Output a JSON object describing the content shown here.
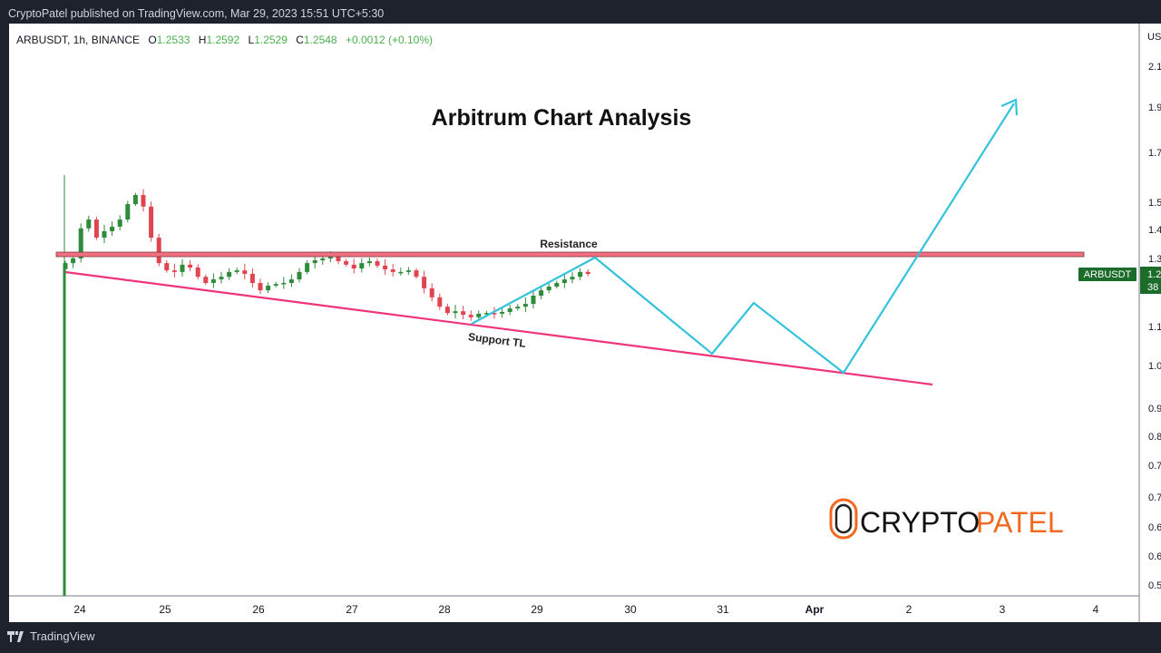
{
  "publisher_line": "CryptoPatel published on TradingView.com, Mar 29, 2023 15:51 UTC+5:30",
  "legend": {
    "symbol": "ARBUSDT, 1h, BINANCE",
    "open_label": "O",
    "open": "1.2533",
    "high_label": "H",
    "high": "1.2592",
    "low_label": "L",
    "low": "1.2529",
    "close_label": "C",
    "close": "1.2548",
    "change": "+0.0012 (+0.10%)"
  },
  "footer": {
    "brand": "TradingView",
    "icon": "tradingview-logo-icon"
  },
  "logo": {
    "text_dark": "CRYPTO",
    "text_orange": "PATEL",
    "icon": "bitcoin-c-icon"
  },
  "colors": {
    "up": "#2e8b3a",
    "down": "#e0454f",
    "resistance": "#f07080",
    "support": "#f0347a",
    "projection": "#34c3dc",
    "price_badge": "#1b6b2a",
    "logo_orange": "#f26a21"
  },
  "chart_data": {
    "type": "candlestick",
    "title": "Arbitrum Chart Analysis",
    "symbol_badge": "ARBUSDT",
    "price_badge": [
      "1.2",
      "38"
    ],
    "y_axis_unit": "US",
    "y_scale": "log",
    "y_tick_labels": [
      "2.1",
      "1.9",
      "1.7",
      "1.5",
      "1.4",
      "1.3",
      "1.1",
      "1.0",
      "0.9",
      "0.8",
      "0.7",
      "0.7",
      "0.6",
      "0.6",
      "0.5"
    ],
    "x_tick_labels": [
      "24",
      "25",
      "26",
      "27",
      "28",
      "29",
      "30",
      "31",
      "Apr",
      "2",
      "3",
      "4"
    ],
    "series_start": "Mar 23 20:00",
    "series_interval": "2h",
    "closes": [
      1.289,
      1.304,
      1.405,
      1.436,
      1.373,
      1.395,
      1.411,
      1.436,
      1.492,
      1.526,
      1.483,
      1.373,
      1.289,
      1.266,
      1.261,
      1.284,
      1.275,
      1.246,
      1.227,
      1.238,
      1.246,
      1.261,
      1.266,
      1.255,
      1.227,
      1.205,
      1.219,
      1.224,
      1.227,
      1.238,
      1.261,
      1.289,
      1.298,
      1.304,
      1.313,
      1.295,
      1.284,
      1.272,
      1.289,
      1.295,
      1.281,
      1.269,
      1.261,
      1.261,
      1.266,
      1.246,
      1.211,
      1.184,
      1.157,
      1.139,
      1.144,
      1.134,
      1.127,
      1.137,
      1.139,
      1.137,
      1.142,
      1.152,
      1.157,
      1.165,
      1.189,
      1.205,
      1.216,
      1.227,
      1.238,
      1.246,
      1.261,
      1.2548
    ],
    "annotations": {
      "resistance": "Resistance",
      "support": "Support TL"
    }
  }
}
